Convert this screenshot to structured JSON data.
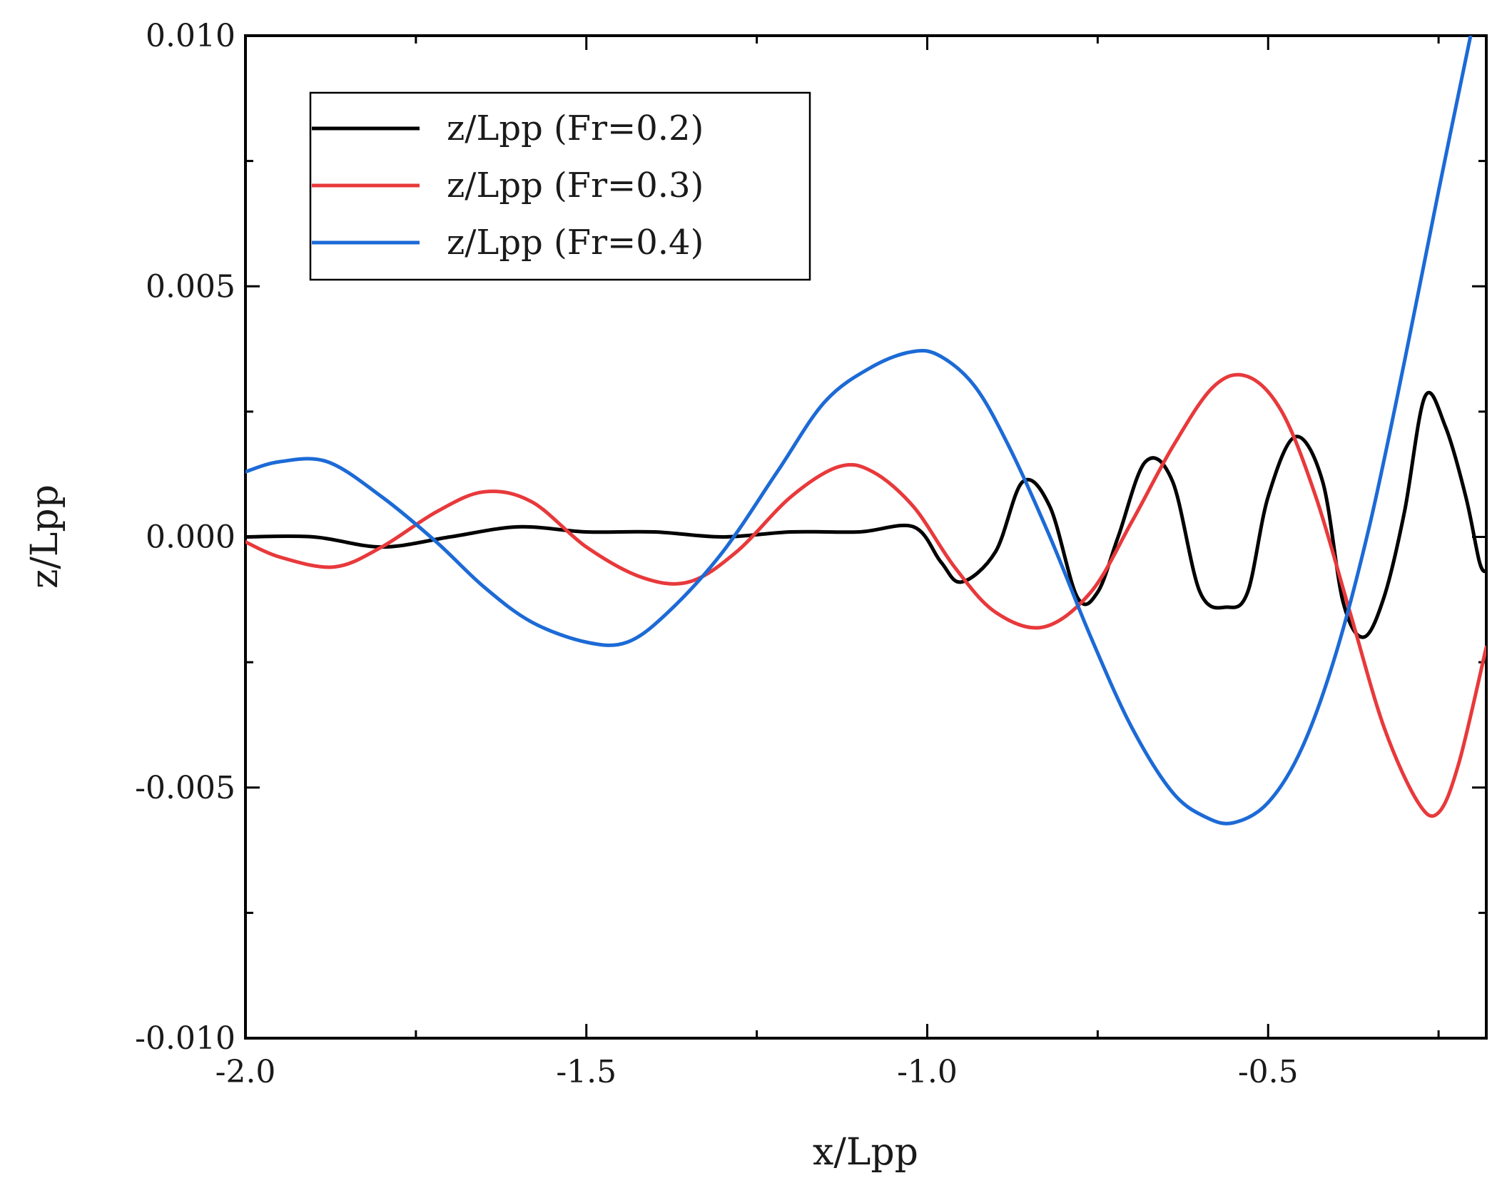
{
  "chart_data": {
    "type": "line",
    "xlabel": "x/Lpp",
    "ylabel": "z/Lpp",
    "xlim": [
      -2.0,
      -0.18
    ],
    "ylim": [
      -0.01,
      0.01
    ],
    "x_ticks": [
      -2.0,
      -1.5,
      -1.0,
      -0.5
    ],
    "x_tick_labels": [
      "-2.0",
      "-1.5",
      "-1.0",
      "-0.5"
    ],
    "x_minor_ticks": [
      -1.75,
      -1.25,
      -0.75,
      -0.25
    ],
    "y_ticks": [
      -0.01,
      -0.005,
      0.0,
      0.005,
      0.01
    ],
    "y_tick_labels": [
      "-0.010",
      "-0.005",
      "0.000",
      "0.005",
      "0.010"
    ],
    "y_minor_ticks": [
      -0.0075,
      -0.0025,
      0.0025,
      0.0075
    ],
    "grid": false,
    "legend_position": "top-left",
    "series": [
      {
        "name": "z/Lpp (Fr=0.2)",
        "color": "#000000",
        "x": [
          -2.0,
          -1.9,
          -1.8,
          -1.7,
          -1.6,
          -1.5,
          -1.4,
          -1.3,
          -1.2,
          -1.1,
          -1.02,
          -0.98,
          -0.95,
          -0.9,
          -0.86,
          -0.82,
          -0.78,
          -0.75,
          -0.72,
          -0.68,
          -0.64,
          -0.6,
          -0.56,
          -0.53,
          -0.5,
          -0.46,
          -0.42,
          -0.39,
          -0.36,
          -0.33,
          -0.3,
          -0.27,
          -0.24,
          -0.21,
          -0.19,
          -0.18
        ],
        "y": [
          0.0,
          0.0,
          -0.0002,
          0.0,
          0.0002,
          0.0001,
          0.0001,
          0.0,
          0.0001,
          0.0001,
          0.0002,
          -0.0005,
          -0.0009,
          -0.0003,
          0.0011,
          0.0006,
          -0.0012,
          -0.0011,
          0.0,
          0.0015,
          0.0011,
          -0.0011,
          -0.0014,
          -0.0011,
          0.0008,
          0.002,
          0.0011,
          -0.0013,
          -0.002,
          -0.0012,
          0.0005,
          0.0028,
          0.0022,
          0.0008,
          -0.0005,
          -0.0007
        ]
      },
      {
        "name": "z/Lpp (Fr=0.3)",
        "color": "#e8393b",
        "x": [
          -2.0,
          -1.95,
          -1.87,
          -1.8,
          -1.72,
          -1.65,
          -1.58,
          -1.5,
          -1.42,
          -1.35,
          -1.28,
          -1.2,
          -1.13,
          -1.08,
          -1.02,
          -0.96,
          -0.9,
          -0.83,
          -0.76,
          -0.7,
          -0.64,
          -0.58,
          -0.53,
          -0.48,
          -0.43,
          -0.38,
          -0.33,
          -0.28,
          -0.25,
          -0.22,
          -0.18
        ],
        "y": [
          -0.0001,
          -0.0004,
          -0.0006,
          -0.0002,
          0.0005,
          0.0009,
          0.0007,
          -0.0002,
          -0.0008,
          -0.0009,
          -0.0003,
          0.0008,
          0.0014,
          0.0013,
          0.0006,
          -0.0006,
          -0.0015,
          -0.0018,
          -0.0011,
          0.0003,
          0.0018,
          0.003,
          0.0032,
          0.0025,
          0.0008,
          -0.0015,
          -0.0038,
          -0.0053,
          -0.0055,
          -0.0045,
          -0.0022
        ]
      },
      {
        "name": "z/Lpp (Fr=0.4)",
        "color": "#1c6ad6",
        "x": [
          -2.0,
          -1.95,
          -1.88,
          -1.8,
          -1.72,
          -1.65,
          -1.58,
          -1.5,
          -1.44,
          -1.38,
          -1.3,
          -1.22,
          -1.15,
          -1.08,
          -1.02,
          -0.98,
          -0.93,
          -0.88,
          -0.82,
          -0.76,
          -0.7,
          -0.64,
          -0.59,
          -0.55,
          -0.5,
          -0.45,
          -0.4,
          -0.35,
          -0.3,
          -0.25,
          -0.2,
          -0.18
        ],
        "y": [
          0.0013,
          0.0015,
          0.0015,
          0.0008,
          -0.0001,
          -0.001,
          -0.0017,
          -0.0021,
          -0.0021,
          -0.0015,
          -0.0003,
          0.0013,
          0.0027,
          0.0034,
          0.0037,
          0.0036,
          0.003,
          0.0018,
          0.0,
          -0.002,
          -0.0038,
          -0.0051,
          -0.0056,
          -0.0057,
          -0.0053,
          -0.0042,
          -0.0023,
          0.0003,
          0.0035,
          0.0069,
          0.0102,
          0.0115
        ]
      }
    ]
  }
}
